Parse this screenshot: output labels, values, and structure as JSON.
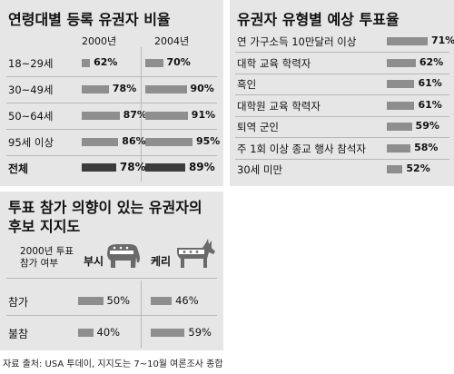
{
  "chart_data": [
    {
      "type": "bar",
      "title": "연령대별 등록 유권자 비율",
      "series": [
        {
          "name": "2000년",
          "values": [
            62,
            78,
            87,
            86,
            78
          ]
        },
        {
          "name": "2004년",
          "values": [
            70,
            90,
            91,
            95,
            89
          ]
        }
      ],
      "categories": [
        "18~29세",
        "30~49세",
        "50~64세",
        "95세 이상",
        "전체"
      ],
      "unit": "%"
    },
    {
      "type": "bar",
      "title": "유권자 유형별 예상 투표율",
      "categories": [
        "연 가구소득 10만달러 이상",
        "대학 교육 학력자",
        "흑인",
        "대학원 교육 학력자",
        "퇴역 군인",
        "주 1회 이상 종교 행사 참석자",
        "30세 미만"
      ],
      "values": [
        71,
        62,
        61,
        61,
        59,
        58,
        52
      ],
      "unit": "%"
    },
    {
      "type": "bar",
      "title": "투표 참가 의향이 있는 유권자의 후보 지지도",
      "header": "2000년 투표 참가 여부",
      "series": [
        {
          "name": "부시",
          "values": [
            50,
            40
          ]
        },
        {
          "name": "케리",
          "values": [
            46,
            59
          ]
        }
      ],
      "categories": [
        "참가",
        "불참"
      ],
      "unit": "%"
    }
  ],
  "icons": {
    "bush": "elephant-icon",
    "kerry": "donkey-icon"
  },
  "source": "자료 출처: USA 투데이, 지지도는 7~10월 여론조사 종합"
}
